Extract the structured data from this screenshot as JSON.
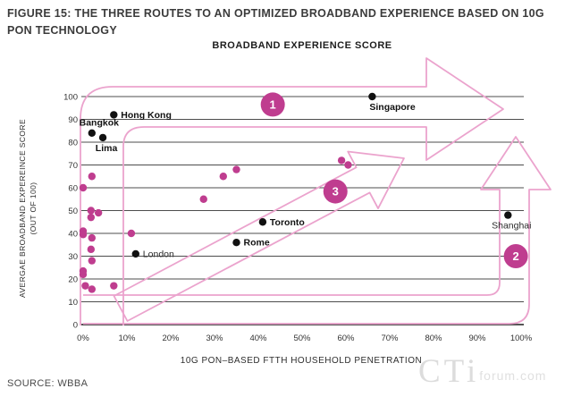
{
  "figure_title": "FIGURE 15: THE THREE ROUTES TO AN OPTIMIZED BROADBAND EXPERIENCE BASED ON 10G PON TECHNOLOGY",
  "source": "SOURCE: WBBA",
  "watermark": {
    "text_large": "CTi",
    "text_small": "forum.com"
  },
  "colors": {
    "magenta": "#bf3d8f",
    "arrow_pink": "#eba3cd",
    "grid": "#4d4d4d",
    "axis_black": "#1f1f1f",
    "city_dot": "#111111"
  },
  "chart_data": {
    "type": "scatter",
    "title": "BROADBAND EXPERIENCE SCORE",
    "xlabel": "10G PON–BASED FTTH HOUSEHOLD PENETRATION",
    "ylabel_line1": "AVERGAE BROADBAND EXPEREINCE SCORE",
    "ylabel_line2": "(OUT OF 100)",
    "xlim": [
      0,
      100
    ],
    "ylim": [
      0,
      100
    ],
    "grid": "horizontal",
    "x_ticks": [
      "0%",
      "10%",
      "20%",
      "30%",
      "40%",
      "50%",
      "60%",
      "70%",
      "80%",
      "90%",
      "100%"
    ],
    "y_ticks": [
      0,
      10,
      20,
      30,
      40,
      50,
      60,
      70,
      80,
      90,
      100
    ],
    "labeled_cities": [
      {
        "name": "Hong Kong",
        "x": 7,
        "y": 92,
        "label_pos": "right",
        "bold": true
      },
      {
        "name": "Bangkok",
        "x": 2,
        "y": 84,
        "label_pos": "above",
        "bold": true
      },
      {
        "name": "Lima",
        "x": 4.5,
        "y": 82,
        "label_pos": "below",
        "bold": true
      },
      {
        "name": "Singapore",
        "x": 66,
        "y": 100,
        "label_pos": "below-right",
        "bold": true
      },
      {
        "name": "London",
        "x": 12,
        "y": 31,
        "label_pos": "right",
        "bold": false
      },
      {
        "name": "Rome",
        "x": 35,
        "y": 36,
        "label_pos": "right",
        "bold": true
      },
      {
        "name": "Toronto",
        "x": 41,
        "y": 45,
        "label_pos": "right",
        "bold": true
      },
      {
        "name": "Shanghai",
        "x": 97,
        "y": 48,
        "label_pos": "below",
        "bold": false
      }
    ],
    "unlabeled_points": [
      {
        "x": 2,
        "y": 65
      },
      {
        "x": 0,
        "y": 60
      },
      {
        "x": 27.5,
        "y": 55
      },
      {
        "x": 32,
        "y": 65
      },
      {
        "x": 35,
        "y": 68
      },
      {
        "x": 1.8,
        "y": 50
      },
      {
        "x": 3.5,
        "y": 49
      },
      {
        "x": 1.8,
        "y": 47
      },
      {
        "x": 0,
        "y": 41
      },
      {
        "x": 0,
        "y": 39.5
      },
      {
        "x": 11,
        "y": 40
      },
      {
        "x": 2,
        "y": 38
      },
      {
        "x": 1.8,
        "y": 33
      },
      {
        "x": 2,
        "y": 28
      },
      {
        "x": 0,
        "y": 23.5
      },
      {
        "x": 0,
        "y": 22
      },
      {
        "x": 0.5,
        "y": 17
      },
      {
        "x": 2,
        "y": 15.5
      },
      {
        "x": 7,
        "y": 17
      },
      {
        "x": 59,
        "y": 72
      },
      {
        "x": 60.5,
        "y": 70
      }
    ],
    "routes": [
      {
        "label": "1",
        "badge_x": 43.3,
        "badge_y": 96.5
      },
      {
        "label": "2",
        "badge_x": 98.8,
        "badge_y": 30
      },
      {
        "label": "3",
        "badge_x": 57.6,
        "badge_y": 58.4
      }
    ]
  }
}
